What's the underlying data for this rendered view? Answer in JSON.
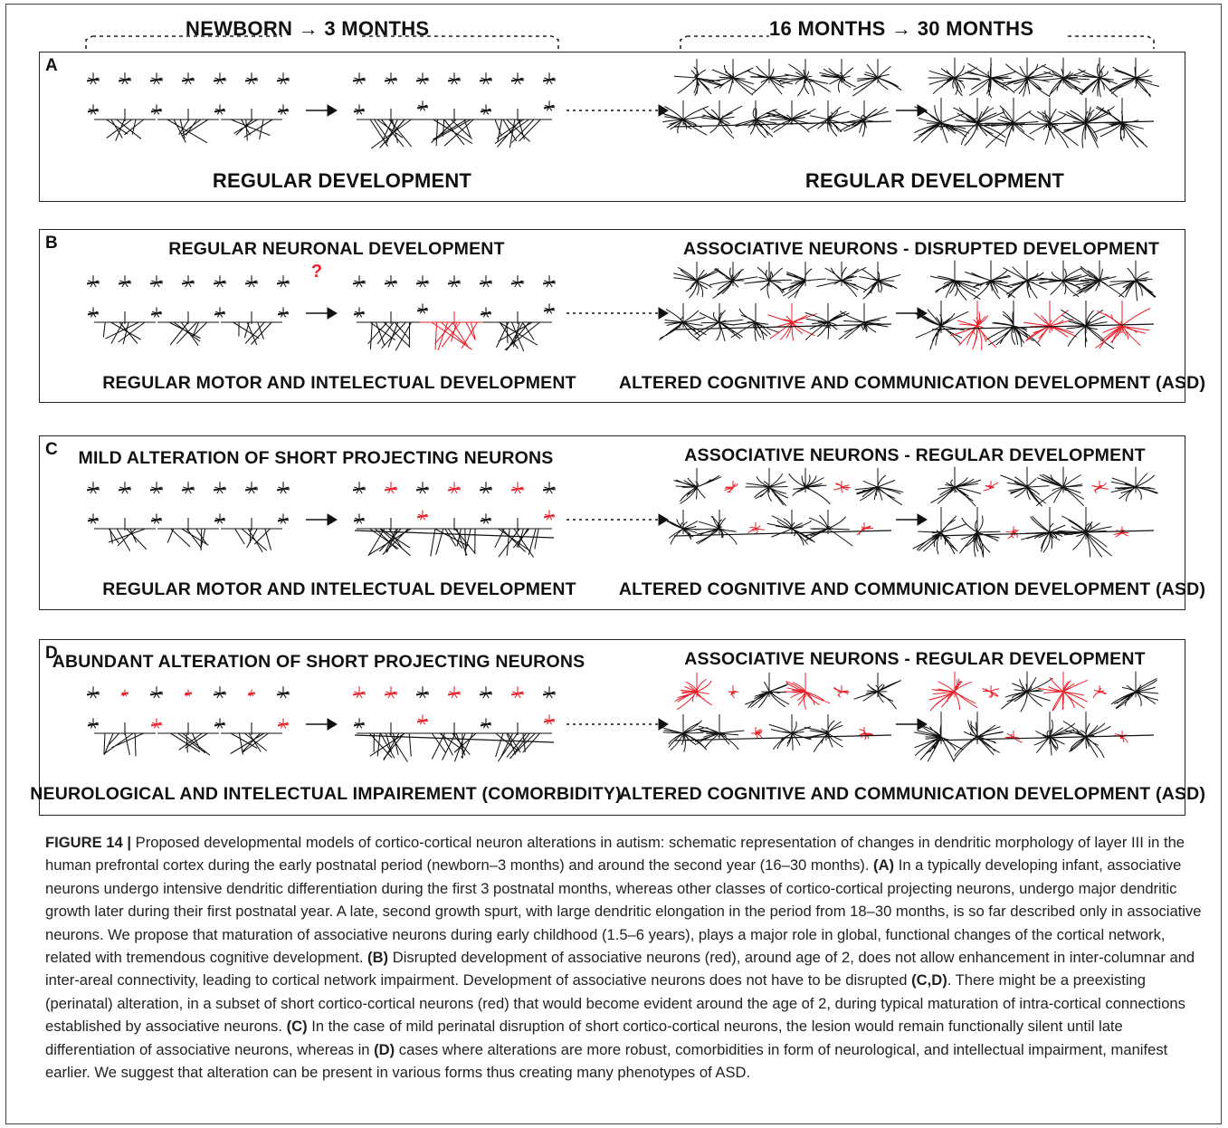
{
  "headers": {
    "early": "NEWBORN  →  3 MONTHS",
    "late": "16 MONTHS  →  30 MONTHS"
  },
  "panels": [
    {
      "letter": "A",
      "top": "",
      "bottom_left": "REGULAR DEVELOPMENT",
      "bottom_right": "REGULAR DEVELOPMENT",
      "left_title": "",
      "right_title": ""
    },
    {
      "letter": "B",
      "left_title": "REGULAR NEURONAL DEVELOPMENT",
      "right_title": "ASSOCIATIVE NEURONS - DISRUPTED DEVELOPMENT",
      "bottom_left": "REGULAR MOTOR AND INTELECTUAL DEVELOPMENT",
      "bottom_right": "ALTERED COGNITIVE AND COMMUNICATION DEVELOPMENT (ASD)",
      "question": "?"
    },
    {
      "letter": "C",
      "left_title": "MILD ALTERATION OF SHORT PROJECTING NEURONS",
      "right_title": "ASSOCIATIVE NEURONS - REGULAR DEVELOPMENT",
      "bottom_left": "REGULAR MOTOR AND INTELECTUAL DEVELOPMENT",
      "bottom_right": "ALTERED COGNITIVE AND COMMUNICATION DEVELOPMENT (ASD)"
    },
    {
      "letter": "D",
      "left_title": "ABUNDANT ALTERATION OF SHORT PROJECTING NEURONS",
      "right_title": "ASSOCIATIVE NEURONS - REGULAR DEVELOPMENT",
      "bottom_left": "NEUROLOGICAL AND INTELECTUAL IMPAIREMENT (COMORBIDITY)",
      "bottom_right": "ALTERED COGNITIVE AND COMMUNICATION DEVELOPMENT (ASD)"
    }
  ],
  "colors": {
    "normal": "#111111",
    "altered": "#e8202a"
  },
  "caption": {
    "figure": "FIGURE 14 |",
    "intro": " Proposed developmental models of cortico-cortical neuron alterations in autism: schematic representation of changes in dendritic morphology of layer III in the human prefrontal cortex during the early postnatal period (newborn–3 months) and around the second year (16–30 months). ",
    "a": "(A)",
    "a_text": " In a typically developing infant, associative neurons undergo intensive dendritic differentiation during the first 3 postnatal months, whereas other classes of cortico-cortical projecting neurons, undergo major dendritic growth later during their first postnatal year. A late, second growth spurt, with large dendritic elongation in the period from 18–30 months, is so far described only in associative neurons. We propose that maturation of associative neurons during early childhood (1.5–6 years), plays a major role in global, functional changes of the cortical network, related with tremendous cognitive development. ",
    "b": "(B)",
    "b_text": " Disrupted development of associative neurons (red), around age of 2, does not allow enhancement in inter-columnar and inter-areal connectivity, leading to cortical network impairment. Development of associative neurons does not have to be disrupted ",
    "cd": "(C,D)",
    "cd_text": ". There might be a preexisting (perinatal) alteration, in a subset of short cortico-cortical neurons (red) that would become evident around the age of 2, during typical maturation of intra-cortical connections established by associative neurons. ",
    "c": "(C)",
    "c_text": " In the case of mild perinatal disruption of short cortico-cortical neurons, the lesion would remain functionally silent until late differentiation of associative neurons, whereas in ",
    "d": "(D)",
    "d_text": " cases where alterations are more robust, comorbidities in form of neurological, and intellectual impairment, manifest earlier. We suggest that alteration can be present in various forms thus creating many phenotypes of ASD."
  }
}
